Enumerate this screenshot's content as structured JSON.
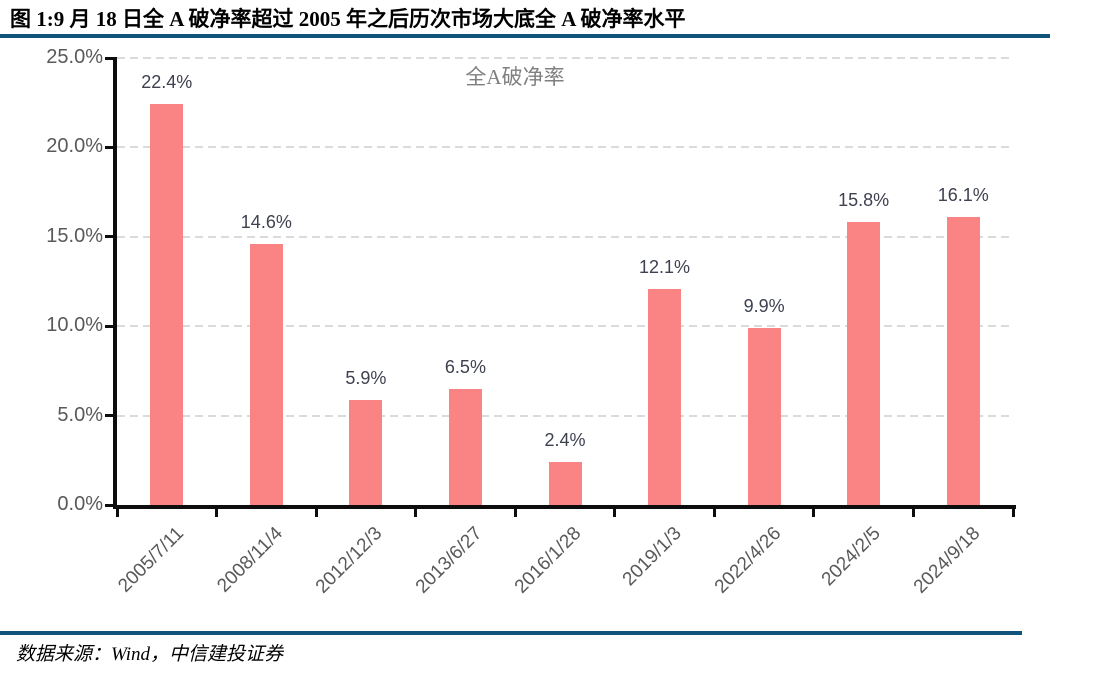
{
  "header": {
    "title": "图 1:9 月 18 日全 A 破净率超过 2005 年之后历次市场大底全 A 破净率水平"
  },
  "footer": {
    "source": "数据来源：Wind，中信建投证券"
  },
  "theme": {
    "accent_rule_color": "#10547C",
    "bar_color": "#FA8384",
    "gridline_color": "#DBDBDB",
    "axis_color": "#0D0D0D",
    "tick_text_color": "#595959",
    "data_label_color": "#3D4150",
    "chart_title_color": "#7F7F7F"
  },
  "chart_data": {
    "type": "bar",
    "title": "全A破净率",
    "categories": [
      "2005/7/11",
      "2008/11/4",
      "2012/12/3",
      "2013/6/27",
      "2016/1/28",
      "2019/1/3",
      "2022/4/26",
      "2024/2/5",
      "2024/9/18"
    ],
    "values": [
      22.4,
      14.6,
      5.9,
      6.5,
      2.4,
      12.1,
      9.9,
      15.8,
      16.1
    ],
    "value_labels": [
      "22.4%",
      "14.6%",
      "5.9%",
      "6.5%",
      "2.4%",
      "12.1%",
      "9.9%",
      "15.8%",
      "16.1%"
    ],
    "y_tick_labels": [
      "25.0%",
      "20.0%",
      "15.0%",
      "10.0%",
      "5.0%",
      "0.0%"
    ],
    "y_tick_values": [
      25,
      20,
      15,
      10,
      5,
      0
    ],
    "ylim": [
      0,
      25
    ],
    "xlabel": "",
    "ylabel": "",
    "legend": "none",
    "grid": "horizontal-dashed"
  }
}
